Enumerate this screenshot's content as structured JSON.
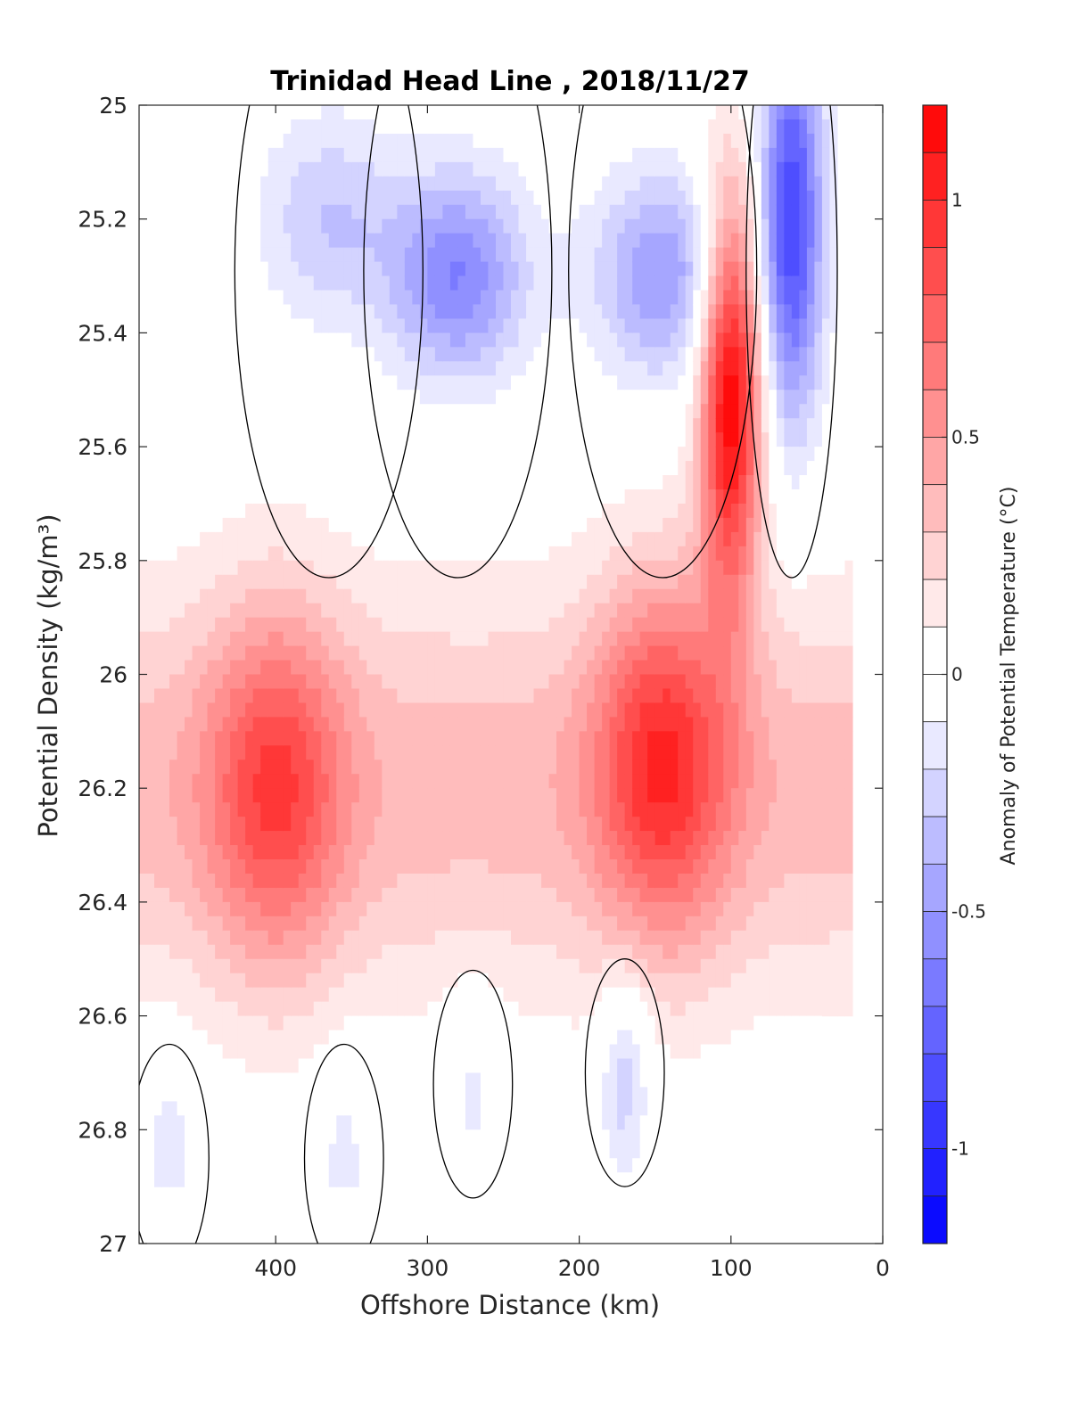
{
  "chart_data": {
    "type": "heatmap",
    "title": "Trinidad Head Line , 2018/11/27",
    "xlabel": "Offshore Distance (km)",
    "ylabel": "Potential Density (kg/m³)",
    "x_reversed": true,
    "y_reversed": true,
    "xlim": [
      490,
      0
    ],
    "ylim": [
      25,
      27
    ],
    "xticks": [
      400,
      300,
      200,
      100,
      0
    ],
    "yticks": [
      25,
      25.2,
      25.4,
      25.6,
      25.8,
      26,
      26.2,
      26.4,
      26.6,
      26.8,
      27
    ],
    "colorbar": {
      "label": "Anomaly of Potential Temperature (°C)",
      "range": [
        -1.2,
        1.2
      ],
      "step": 0.1,
      "ticks": [
        1,
        0.5,
        0,
        -0.5,
        -1
      ],
      "colormap": "blue-white-red diverging",
      "positive_color": "#ff0000",
      "negative_color": "#0000ff"
    },
    "contour_level": 0,
    "contour_color": "#000000",
    "data_extent": {
      "x_min": 20,
      "x_max": 490,
      "y_min": 25,
      "y_max": 26.9
    },
    "features": [
      {
        "label": "warm core",
        "x": 100,
        "y": 25.5,
        "value": 1.2
      },
      {
        "label": "warm band",
        "x": 400,
        "y": 26.2,
        "value": 0.6
      },
      {
        "label": "warm band",
        "x": 145,
        "y": 26.15,
        "value": 0.7
      },
      {
        "label": "cold core",
        "x": 60,
        "y": 25.2,
        "value": -0.9
      },
      {
        "label": "cold core",
        "x": 280,
        "y": 25.3,
        "value": -0.6
      },
      {
        "label": "cold core",
        "x": 145,
        "y": 25.3,
        "value": -0.5
      },
      {
        "label": "cold core",
        "x": 365,
        "y": 25.2,
        "value": -0.3
      },
      {
        "label": "cold pocket",
        "x": 170,
        "y": 26.7,
        "value": -0.3
      },
      {
        "label": "cold pocket",
        "x": 470,
        "y": 26.85,
        "value": -0.2
      },
      {
        "label": "cold pocket",
        "x": 355,
        "y": 26.85,
        "value": -0.15
      },
      {
        "label": "cold pocket",
        "x": 270,
        "y": 26.72,
        "value": -0.15
      }
    ]
  }
}
